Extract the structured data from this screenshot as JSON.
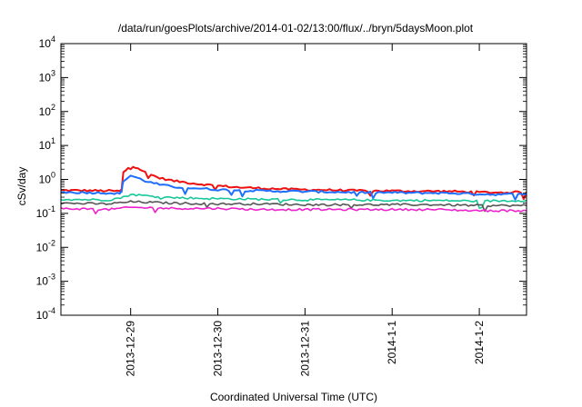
{
  "chart_data": {
    "type": "line",
    "title": "/data/run/goesPlots/archive/2014-01-02/13:00/flux/../bryn/5daysMoon.plot",
    "xlabel": "Coordinated Universal Time (UTC)",
    "ylabel": "cSv/day",
    "yscale": "log",
    "ylim": [
      0.0001,
      10000
    ],
    "xlim": [
      "2013-12-28 04:48",
      "2014-01-02 13:00"
    ],
    "grid": false,
    "legend": "none",
    "y_ticks": [
      {
        "base": "10",
        "exp": "-4"
      },
      {
        "base": "10",
        "exp": "-3"
      },
      {
        "base": "10",
        "exp": "-2"
      },
      {
        "base": "10",
        "exp": "-1"
      },
      {
        "base": "10",
        "exp": "0"
      },
      {
        "base": "10",
        "exp": "1"
      },
      {
        "base": "10",
        "exp": "2"
      },
      {
        "base": "10",
        "exp": "3"
      },
      {
        "base": "10",
        "exp": "4"
      }
    ],
    "x_ticks": [
      "2013-12-29",
      "2013-12-30",
      "2013-12-31",
      "2014-1-1",
      "2014-1-2"
    ],
    "x_tick_dates": [
      "2013-12-29 00:00",
      "2013-12-30 00:00",
      "2013-12-31 00:00",
      "2014-01-01 00:00",
      "2014-01-02 00:00"
    ],
    "series": [
      {
        "color": "#ee1111",
        "x": [
          "2013-12-28 04:48",
          "2013-12-28 12:00",
          "2013-12-28 18:00",
          "2013-12-28 21:00",
          "2013-12-28 21:30",
          "2013-12-28 22:00",
          "2013-12-29 00:00",
          "2013-12-29 02:00",
          "2013-12-29 04:00",
          "2013-12-29 08:00",
          "2013-12-29 12:00",
          "2013-12-29 18:00",
          "2013-12-30 00:00",
          "2013-12-30 06:00",
          "2013-12-30 12:00",
          "2013-12-30 18:00",
          "2013-12-31 00:00",
          "2013-12-31 06:00",
          "2013-12-31 12:00",
          "2013-12-31 18:00",
          "2014-01-01 00:00",
          "2014-01-01 06:00",
          "2014-01-01 12:00",
          "2014-01-01 18:00",
          "2014-01-02 00:00",
          "2014-01-02 06:00",
          "2014-01-02 13:00"
        ],
        "values": [
          0.48,
          0.47,
          0.46,
          0.45,
          0.5,
          1.6,
          2.6,
          2.2,
          1.6,
          1.1,
          0.9,
          0.75,
          0.65,
          0.58,
          0.55,
          0.52,
          0.5,
          0.49,
          0.47,
          0.46,
          0.46,
          0.45,
          0.45,
          0.44,
          0.42,
          0.41,
          0.43
        ]
      },
      {
        "color": "#1f6fff",
        "x": [
          "2013-12-28 04:48",
          "2013-12-28 12:00",
          "2013-12-28 18:00",
          "2013-12-28 21:00",
          "2013-12-28 21:30",
          "2013-12-28 22:00",
          "2013-12-29 00:00",
          "2013-12-29 02:00",
          "2013-12-29 04:00",
          "2013-12-29 08:00",
          "2013-12-29 12:00",
          "2013-12-29 18:00",
          "2013-12-30 00:00",
          "2013-12-30 06:00",
          "2013-12-30 12:00",
          "2013-12-30 18:00",
          "2013-12-31 00:00",
          "2013-12-31 06:00",
          "2013-12-31 12:00",
          "2013-12-31 18:00",
          "2014-01-01 00:00",
          "2014-01-01 06:00",
          "2014-01-01 12:00",
          "2014-01-01 18:00",
          "2014-01-02 00:00",
          "2014-01-02 06:00",
          "2014-01-02 13:00"
        ],
        "values": [
          0.42,
          0.41,
          0.4,
          0.38,
          0.45,
          0.9,
          1.3,
          1.1,
          0.9,
          0.7,
          0.6,
          0.55,
          0.5,
          0.48,
          0.46,
          0.45,
          0.44,
          0.43,
          0.42,
          0.41,
          0.41,
          0.4,
          0.4,
          0.39,
          0.37,
          0.36,
          0.38
        ]
      },
      {
        "color": "#17c79a",
        "x": [
          "2013-12-28 04:48",
          "2013-12-28 18:00",
          "2013-12-28 22:00",
          "2013-12-29 00:00",
          "2013-12-29 06:00",
          "2013-12-29 12:00",
          "2013-12-30 00:00",
          "2013-12-30 12:00",
          "2013-12-31 00:00",
          "2013-12-31 12:00",
          "2014-01-01 00:00",
          "2014-01-01 12:00",
          "2014-01-02 00:00",
          "2014-01-02 13:00"
        ],
        "values": [
          0.26,
          0.25,
          0.3,
          0.36,
          0.32,
          0.29,
          0.27,
          0.26,
          0.25,
          0.25,
          0.24,
          0.24,
          0.23,
          0.24
        ]
      },
      {
        "color": "#555555",
        "x": [
          "2013-12-28 04:48",
          "2013-12-28 18:00",
          "2013-12-29 00:00",
          "2013-12-29 12:00",
          "2013-12-30 00:00",
          "2013-12-30 12:00",
          "2013-12-31 00:00",
          "2013-12-31 12:00",
          "2014-01-01 00:00",
          "2014-01-01 12:00",
          "2014-01-02 00:00",
          "2014-01-02 13:00"
        ],
        "values": [
          0.2,
          0.19,
          0.22,
          0.2,
          0.19,
          0.19,
          0.18,
          0.18,
          0.18,
          0.18,
          0.17,
          0.17
        ]
      },
      {
        "color": "#ee22cc",
        "x": [
          "2013-12-28 04:48",
          "2013-12-28 18:00",
          "2013-12-29 00:00",
          "2013-12-29 12:00",
          "2013-12-30 00:00",
          "2013-12-30 12:00",
          "2013-12-31 00:00",
          "2013-12-31 12:00",
          "2014-01-01 00:00",
          "2014-01-01 12:00",
          "2014-01-02 00:00",
          "2014-01-02 13:00"
        ],
        "values": [
          0.14,
          0.13,
          0.15,
          0.14,
          0.14,
          0.13,
          0.13,
          0.13,
          0.13,
          0.13,
          0.12,
          0.12
        ]
      }
    ]
  }
}
